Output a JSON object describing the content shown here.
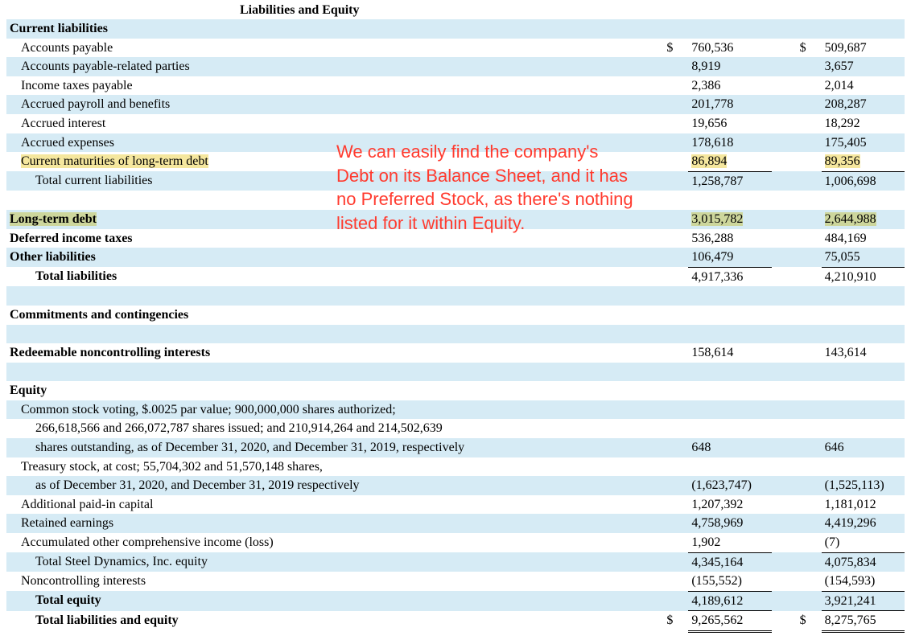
{
  "title": "Liabilities and Equity",
  "annotation": "We can easily find the company's Debt on its Balance Sheet, and it has no Preferred Stock, as there's nothing listed for it within Equity.",
  "colors": {
    "stripe": "#d6ebf5",
    "highlight_yellow": "#f5e79e",
    "highlight_green": "#cdd69c",
    "annotation_text": "#ff3b2f",
    "text": "#000000",
    "background": "#ffffff"
  },
  "currency_symbol": "$",
  "sections": {
    "current_liabilities": {
      "header": "Current liabilities",
      "rows": [
        {
          "label": "Accounts payable",
          "v1": "760,536",
          "v2": "509,687",
          "sym": true
        },
        {
          "label": "Accounts payable-related parties",
          "v1": "8,919",
          "v2": "3,657"
        },
        {
          "label": "Income taxes payable",
          "v1": "2,386",
          "v2": "2,014"
        },
        {
          "label": "Accrued payroll and benefits",
          "v1": "201,778",
          "v2": "208,287"
        },
        {
          "label": "Accrued interest",
          "v1": "19,656",
          "v2": "18,292"
        },
        {
          "label": "Accrued expenses",
          "v1": "178,618",
          "v2": "175,405"
        },
        {
          "label": "Current maturities of long-term debt",
          "v1": "86,894",
          "v2": "89,356",
          "highlight": "yellow"
        }
      ],
      "total": {
        "label": "Total current liabilities",
        "v1": "1,258,787",
        "v2": "1,006,698"
      }
    },
    "long_term": [
      {
        "label": "Long-term debt",
        "v1": "3,015,782",
        "v2": "2,644,988",
        "highlight": "green",
        "bold": true
      },
      {
        "label": "Deferred income taxes",
        "v1": "536,288",
        "v2": "484,169",
        "bold": true
      },
      {
        "label": "Other liabilities",
        "v1": "106,479",
        "v2": "75,055",
        "bold": true
      }
    ],
    "total_liabilities": {
      "label": "Total liabilities",
      "v1": "4,917,336",
      "v2": "4,210,910"
    },
    "commitments": {
      "label": "Commitments and contingencies"
    },
    "redeemable": {
      "label": "Redeemable noncontrolling interests",
      "v1": "158,614",
      "v2": "143,614"
    },
    "equity": {
      "header": "Equity",
      "common_stock_lines": [
        "Common stock voting, $.0025 par value; 900,000,000 shares authorized;",
        "266,618,566 and 266,072,787 shares issued; and 210,914,264 and 214,502,639",
        "shares outstanding, as of December 31, 2020, and December 31, 2019, respectively"
      ],
      "common_stock_vals": {
        "v1": "648",
        "v2": "646"
      },
      "treasury_lines": [
        "Treasury stock, at cost; 55,704,302 and 51,570,148 shares,",
        "as of December 31, 2020, and December 31, 2019 respectively"
      ],
      "treasury_vals": {
        "v1": "(1,623,747)",
        "v2": "(1,525,113)"
      },
      "rows": [
        {
          "label": "Additional paid-in capital",
          "v1": "1,207,392",
          "v2": "1,181,012"
        },
        {
          "label": "Retained earnings",
          "v1": "4,758,969",
          "v2": "4,419,296"
        },
        {
          "label": "Accumulated other comprehensive income (loss)",
          "v1": "1,902",
          "v2": "(7)"
        }
      ],
      "subtotal_sd": {
        "label": "Total Steel Dynamics, Inc. equity",
        "v1": "4,345,164",
        "v2": "4,075,834"
      },
      "nci": {
        "label": "Noncontrolling interests",
        "v1": "(155,552)",
        "v2": "(154,593)"
      },
      "total_equity": {
        "label": "Total equity",
        "v1": "4,189,612",
        "v2": "3,921,241"
      },
      "total_liab_equity": {
        "label": "Total liabilities and equity",
        "v1": "9,265,562",
        "v2": "8,275,765",
        "sym": true
      }
    }
  }
}
